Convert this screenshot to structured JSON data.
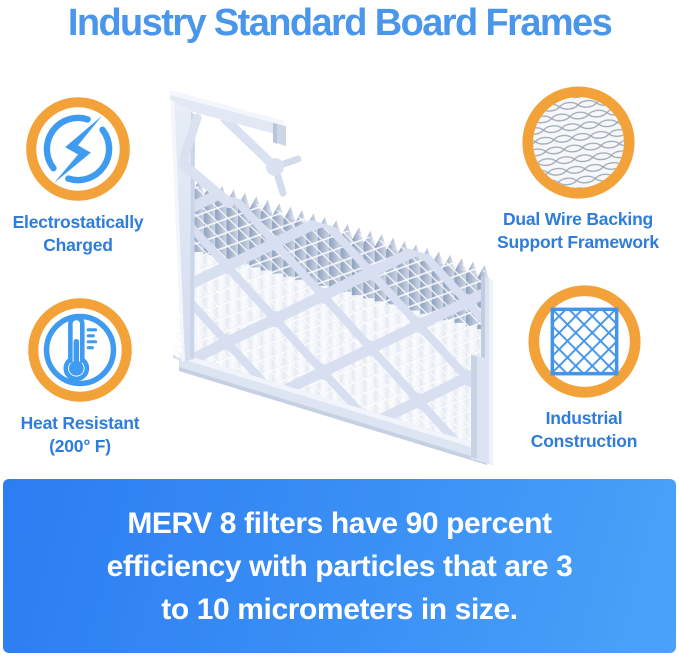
{
  "page": {
    "title": "Industry Standard Board Frames"
  },
  "features": [
    {
      "id": "electrostatic",
      "icon": "lightning-bolt-icon",
      "lines": [
        "Electrostatically",
        "Charged"
      ]
    },
    {
      "id": "wire-backing",
      "icon": "wire-mesh-icon",
      "lines": [
        "Dual Wire Backing",
        "Support Framework"
      ]
    },
    {
      "id": "heat-resistant",
      "icon": "thermometer-icon",
      "lines": [
        "Heat Resistant",
        "(200° F)"
      ]
    },
    {
      "id": "industrial-construction",
      "icon": "diamond-lattice-icon",
      "lines": [
        "Industrial",
        "Construction"
      ]
    }
  ],
  "banner": {
    "lines": [
      "MERV 8 filters have 90 percent",
      "efficiency with particles that are 3",
      "to 10 micrometers in size."
    ]
  },
  "colors": {
    "title_blue": "#4A96EA",
    "label_blue": "#2E7CDC",
    "icon_blue": "#3F9BEF",
    "accent_orange": "#F2A239",
    "banner_blue_start": "#2C7DF2",
    "banner_blue_end": "#4BA3F8",
    "banner_text": "#FFFFFF",
    "frame_tint": "#DDE4F2"
  }
}
